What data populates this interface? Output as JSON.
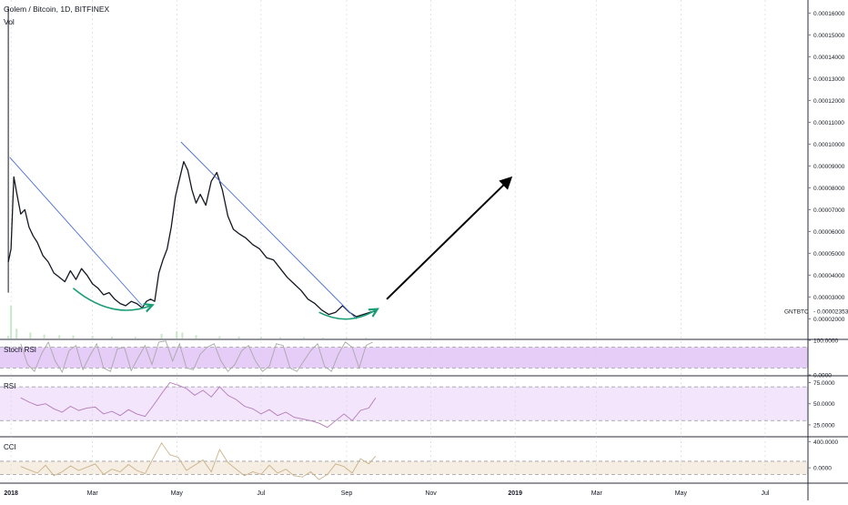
{
  "header": {
    "symbol_title": "Golem / Bitcoin, 1D, BITFINEX",
    "volume_label": "Vol"
  },
  "colors": {
    "price": "#131722",
    "trendline": "#4a6fd6",
    "arc": "#1b9e77",
    "arrow": "#000000",
    "volume": "#c8e6c9",
    "stoch_fill": "#e6cdf7",
    "stoch_line": "#a8a8a8",
    "rsi_fill": "#f3e5fb",
    "rsi_line": "#b27bb8",
    "cci_fill": "#f6eee3",
    "cci_line": "#c9b38a",
    "grid_separator": "#2a2e39"
  },
  "chart_data": {
    "type": "line",
    "x_axis": {
      "tick_labels": [
        "2018",
        "Mar",
        "May",
        "Jul",
        "Sep",
        "Nov",
        "2019",
        "Mar",
        "May",
        "Jul"
      ],
      "tick_dates": [
        "2018-01-01",
        "2018-03-01",
        "2018-05-01",
        "2018-07-01",
        "2018-09-01",
        "2018-11-01",
        "2019-01-01",
        "2019-03-01",
        "2019-05-01",
        "2019-07-01"
      ],
      "range": [
        "2017-12-24",
        "2019-08-01"
      ]
    },
    "price_pane": {
      "symbol": "GNTBTC",
      "last_value": "0.00002353",
      "ylim": [
        1.1e-05,
        0.000166
      ],
      "y_tick_labels": [
        "0.00016000",
        "0.00015000",
        "0.00014000",
        "0.00013000",
        "0.00012000",
        "0.00011000",
        "0.00010000",
        "0.00009000",
        "0.00008000",
        "0.00007000",
        "0.00006000",
        "0.00005000",
        "0.00004000",
        "0.00003000",
        "0.00002000"
      ],
      "y_tick_values": [
        0.00016,
        0.00015,
        0.00014,
        0.00013,
        0.00012,
        0.00011,
        0.0001,
        9e-05,
        8e-05,
        7e-05,
        6e-05,
        5e-05,
        4e-05,
        3e-05,
        2e-05
      ],
      "series": [
        {
          "dates": [
            "2017-12-30",
            "2018-01-01",
            "2018-01-03",
            "2018-01-05",
            "2018-01-08",
            "2018-01-11",
            "2018-01-14",
            "2018-01-17",
            "2018-01-20",
            "2018-01-24",
            "2018-01-28",
            "2018-02-01",
            "2018-02-05",
            "2018-02-09",
            "2018-02-13",
            "2018-02-17",
            "2018-02-21",
            "2018-02-25",
            "2018-03-01",
            "2018-03-05",
            "2018-03-09",
            "2018-03-13",
            "2018-03-17",
            "2018-03-21",
            "2018-03-25",
            "2018-03-29",
            "2018-04-02",
            "2018-04-06",
            "2018-04-09",
            "2018-04-12",
            "2018-04-15",
            "2018-04-18",
            "2018-04-21",
            "2018-04-24",
            "2018-04-27",
            "2018-04-30",
            "2018-05-03",
            "2018-05-06",
            "2018-05-09",
            "2018-05-12",
            "2018-05-15",
            "2018-05-18",
            "2018-05-22",
            "2018-05-26",
            "2018-05-30",
            "2018-06-03",
            "2018-06-07",
            "2018-06-11",
            "2018-06-15",
            "2018-06-20",
            "2018-06-25",
            "2018-06-30",
            "2018-07-05",
            "2018-07-10",
            "2018-07-15",
            "2018-07-20",
            "2018-07-25",
            "2018-07-30",
            "2018-08-04",
            "2018-08-09",
            "2018-08-14",
            "2018-08-19",
            "2018-08-24",
            "2018-08-29",
            "2018-09-03",
            "2018-09-08",
            "2018-09-13",
            "2018-09-18",
            "2018-09-22"
          ],
          "values": [
            4.6e-05,
            5.2e-05,
            8.5e-05,
            7.8e-05,
            6.8e-05,
            7e-05,
            6.2e-05,
            5.8e-05,
            5.5e-05,
            4.9e-05,
            4.6e-05,
            4.1e-05,
            3.9e-05,
            3.7e-05,
            4.2e-05,
            3.8e-05,
            4.3e-05,
            4e-05,
            3.6e-05,
            3.4e-05,
            3.1e-05,
            3.2e-05,
            2.9e-05,
            2.7e-05,
            2.6e-05,
            2.8e-05,
            2.7e-05,
            2.5e-05,
            2.8e-05,
            2.9e-05,
            2.8e-05,
            4.1e-05,
            4.7e-05,
            5.2e-05,
            6.2e-05,
            7.6e-05,
            8.4e-05,
            9.2e-05,
            8.8e-05,
            7.9e-05,
            7.3e-05,
            7.7e-05,
            7.2e-05,
            8.3e-05,
            8.7e-05,
            7.9e-05,
            6.7e-05,
            6.1e-05,
            5.9e-05,
            5.7e-05,
            5.4e-05,
            5.2e-05,
            4.8e-05,
            4.7e-05,
            4.3e-05,
            3.9e-05,
            3.6e-05,
            3.3e-05,
            2.9e-05,
            2.7e-05,
            2.4e-05,
            2.2e-05,
            2.3e-05,
            2.6e-05,
            2.3e-05,
            2.1e-05,
            2.2e-05,
            2.3e-05,
            2.35e-05
          ]
        }
      ],
      "annotations": {
        "trendline_1": {
          "from": [
            "2017-12-31",
            9.4e-05
          ],
          "to": [
            "2018-04-06",
            2.6e-05
          ]
        },
        "trendline_2": {
          "from": [
            "2018-05-04",
            0.000101
          ],
          "to": [
            "2018-09-08",
            2e-05
          ]
        },
        "arc_1": {
          "from": [
            "2018-02-15",
            3.4e-05
          ],
          "to": [
            "2018-04-12",
            2.6e-05
          ]
        },
        "arc_2": {
          "from": [
            "2018-08-12",
            2.3e-05
          ],
          "to": [
            "2018-09-22",
            2.4e-05
          ]
        },
        "arrow": {
          "from": [
            "2018-09-30",
            2.9e-05
          ],
          "to": [
            "2018-12-28",
            8.4e-05
          ]
        }
      }
    },
    "volume": {
      "dates": [
        "2017-12-30",
        "2018-01-01",
        "2018-01-05",
        "2018-01-15",
        "2018-01-25",
        "2018-02-05",
        "2018-02-15",
        "2018-03-01",
        "2018-03-15",
        "2018-04-01",
        "2018-04-20",
        "2018-05-01",
        "2018-05-05",
        "2018-05-15",
        "2018-06-01",
        "2018-06-15",
        "2018-07-01",
        "2018-07-15",
        "2018-08-01",
        "2018-08-15",
        "2018-09-01",
        "2018-09-15"
      ],
      "values": [
        8,
        100,
        30,
        18,
        12,
        10,
        9,
        8,
        6,
        5,
        14,
        22,
        18,
        10,
        7,
        6,
        5,
        4,
        4,
        3,
        3,
        3
      ]
    },
    "stoch_rsi": {
      "label": "Stoch RSI",
      "ylim": [
        0,
        100
      ],
      "y_tick_labels": [
        "100.0000",
        "0.0000"
      ],
      "band": [
        20,
        80
      ],
      "dates": [
        "2018-01-08",
        "2018-01-13",
        "2018-01-18",
        "2018-01-23",
        "2018-01-28",
        "2018-02-02",
        "2018-02-07",
        "2018-02-12",
        "2018-02-17",
        "2018-02-22",
        "2018-02-27",
        "2018-03-04",
        "2018-03-09",
        "2018-03-14",
        "2018-03-19",
        "2018-03-24",
        "2018-03-29",
        "2018-04-03",
        "2018-04-08",
        "2018-04-13",
        "2018-04-18",
        "2018-04-23",
        "2018-04-28",
        "2018-05-03",
        "2018-05-08",
        "2018-05-13",
        "2018-05-18",
        "2018-05-23",
        "2018-05-28",
        "2018-06-02",
        "2018-06-07",
        "2018-06-12",
        "2018-06-17",
        "2018-06-22",
        "2018-06-27",
        "2018-07-02",
        "2018-07-07",
        "2018-07-12",
        "2018-07-17",
        "2018-07-22",
        "2018-07-27",
        "2018-08-01",
        "2018-08-06",
        "2018-08-11",
        "2018-08-16",
        "2018-08-21",
        "2018-08-26",
        "2018-08-31",
        "2018-09-05",
        "2018-09-10",
        "2018-09-15",
        "2018-09-20"
      ],
      "values": [
        90,
        30,
        10,
        60,
        95,
        40,
        8,
        70,
        85,
        15,
        55,
        90,
        20,
        10,
        75,
        80,
        12,
        50,
        85,
        30,
        95,
        98,
        40,
        90,
        20,
        15,
        60,
        80,
        90,
        40,
        10,
        30,
        70,
        85,
        40,
        10,
        25,
        90,
        85,
        20,
        10,
        40,
        70,
        90,
        25,
        10,
        60,
        95,
        80,
        20,
        85,
        95
      ]
    },
    "rsi": {
      "label": "RSI",
      "ylim": [
        12,
        82
      ],
      "y_tick_labels": [
        "75.0000",
        "50.0000",
        "25.0000"
      ],
      "band": [
        30,
        70
      ],
      "dates": [
        "2018-01-08",
        "2018-01-14",
        "2018-01-20",
        "2018-01-26",
        "2018-02-01",
        "2018-02-07",
        "2018-02-13",
        "2018-02-19",
        "2018-02-25",
        "2018-03-03",
        "2018-03-09",
        "2018-03-15",
        "2018-03-21",
        "2018-03-27",
        "2018-04-02",
        "2018-04-08",
        "2018-04-14",
        "2018-04-20",
        "2018-04-26",
        "2018-05-02",
        "2018-05-08",
        "2018-05-14",
        "2018-05-20",
        "2018-05-26",
        "2018-06-01",
        "2018-06-07",
        "2018-06-13",
        "2018-06-19",
        "2018-06-25",
        "2018-07-01",
        "2018-07-07",
        "2018-07-13",
        "2018-07-19",
        "2018-07-25",
        "2018-07-31",
        "2018-08-06",
        "2018-08-12",
        "2018-08-18",
        "2018-08-24",
        "2018-08-30",
        "2018-09-05",
        "2018-09-11",
        "2018-09-17",
        "2018-09-22"
      ],
      "values": [
        57,
        52,
        48,
        50,
        44,
        40,
        47,
        42,
        45,
        46,
        38,
        41,
        36,
        43,
        38,
        35,
        48,
        62,
        75,
        72,
        68,
        60,
        66,
        58,
        70,
        60,
        55,
        47,
        44,
        38,
        43,
        36,
        40,
        34,
        32,
        30,
        27,
        22,
        30,
        38,
        30,
        42,
        45,
        57
      ]
    },
    "cci": {
      "label": "CCI",
      "ylim": [
        -220,
        460
      ],
      "y_tick_labels": [
        "400.0000",
        "0.0000"
      ],
      "band": [
        -100,
        100
      ],
      "dates": [
        "2018-01-08",
        "2018-01-14",
        "2018-01-20",
        "2018-01-26",
        "2018-02-01",
        "2018-02-07",
        "2018-02-13",
        "2018-02-19",
        "2018-02-25",
        "2018-03-03",
        "2018-03-09",
        "2018-03-15",
        "2018-03-21",
        "2018-03-27",
        "2018-04-02",
        "2018-04-08",
        "2018-04-14",
        "2018-04-20",
        "2018-04-26",
        "2018-05-02",
        "2018-05-08",
        "2018-05-14",
        "2018-05-20",
        "2018-05-26",
        "2018-06-01",
        "2018-06-07",
        "2018-06-13",
        "2018-06-19",
        "2018-06-25",
        "2018-07-01",
        "2018-07-07",
        "2018-07-13",
        "2018-07-19",
        "2018-07-25",
        "2018-07-31",
        "2018-08-06",
        "2018-08-12",
        "2018-08-18",
        "2018-08-24",
        "2018-08-30",
        "2018-09-05",
        "2018-09-11",
        "2018-09-17",
        "2018-09-22"
      ],
      "values": [
        20,
        -30,
        -80,
        40,
        -120,
        -60,
        30,
        -40,
        10,
        60,
        -100,
        -20,
        -60,
        50,
        -40,
        -90,
        150,
        380,
        200,
        160,
        -40,
        40,
        120,
        -60,
        280,
        80,
        -20,
        -120,
        -60,
        -100,
        40,
        -80,
        -20,
        -120,
        -140,
        -60,
        -180,
        -100,
        60,
        20,
        -80,
        140,
        60,
        180
      ]
    }
  }
}
